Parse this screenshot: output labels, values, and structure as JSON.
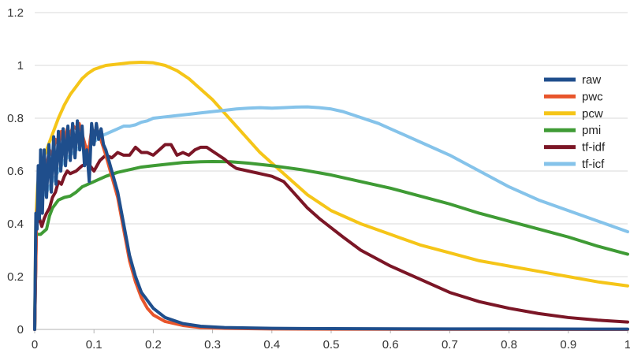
{
  "chart_data": {
    "type": "line",
    "title": "",
    "xlabel": "",
    "ylabel": "",
    "xlim": [
      0,
      1
    ],
    "ylim": [
      0,
      1.2
    ],
    "x_ticks": [
      "0",
      "0.1",
      "0.2",
      "0.3",
      "0.4",
      "0.5",
      "0.6",
      "0.7",
      "0.8",
      "0.9",
      "1"
    ],
    "y_ticks": [
      "0",
      "0.2",
      "0.4",
      "0.6",
      "0.8",
      "1",
      "1.2"
    ],
    "grid": "horizontal",
    "legend_position": "right",
    "series": [
      {
        "name": "raw",
        "color": "#1f4e8c",
        "points": [
          [
            0,
            0
          ],
          [
            0.002,
            0.44
          ],
          [
            0.004,
            0.38
          ],
          [
            0.006,
            0.62
          ],
          [
            0.008,
            0.42
          ],
          [
            0.01,
            0.68
          ],
          [
            0.013,
            0.44
          ],
          [
            0.016,
            0.68
          ],
          [
            0.02,
            0.5
          ],
          [
            0.024,
            0.7
          ],
          [
            0.028,
            0.52
          ],
          [
            0.032,
            0.73
          ],
          [
            0.036,
            0.55
          ],
          [
            0.04,
            0.75
          ],
          [
            0.044,
            0.6
          ],
          [
            0.048,
            0.76
          ],
          [
            0.052,
            0.62
          ],
          [
            0.056,
            0.77
          ],
          [
            0.06,
            0.64
          ],
          [
            0.064,
            0.78
          ],
          [
            0.068,
            0.65
          ],
          [
            0.072,
            0.79
          ],
          [
            0.076,
            0.68
          ],
          [
            0.08,
            0.77
          ],
          [
            0.084,
            0.62
          ],
          [
            0.088,
            0.68
          ],
          [
            0.092,
            0.56
          ],
          [
            0.096,
            0.78
          ],
          [
            0.1,
            0.7
          ],
          [
            0.104,
            0.78
          ],
          [
            0.108,
            0.72
          ],
          [
            0.112,
            0.76
          ],
          [
            0.116,
            0.7
          ],
          [
            0.12,
            0.68
          ],
          [
            0.13,
            0.6
          ],
          [
            0.14,
            0.52
          ],
          [
            0.15,
            0.4
          ],
          [
            0.16,
            0.28
          ],
          [
            0.17,
            0.2
          ],
          [
            0.18,
            0.14
          ],
          [
            0.2,
            0.08
          ],
          [
            0.22,
            0.045
          ],
          [
            0.25,
            0.022
          ],
          [
            0.28,
            0.012
          ],
          [
            0.32,
            0.007
          ],
          [
            0.4,
            0.004
          ],
          [
            0.5,
            0.003
          ],
          [
            0.7,
            0.002
          ],
          [
            1,
            0.001
          ]
        ]
      },
      {
        "name": "pwc",
        "color": "#e8552b",
        "points": [
          [
            0,
            0
          ],
          [
            0.003,
            0.42
          ],
          [
            0.006,
            0.5
          ],
          [
            0.01,
            0.6
          ],
          [
            0.015,
            0.64
          ],
          [
            0.02,
            0.62
          ],
          [
            0.025,
            0.68
          ],
          [
            0.03,
            0.66
          ],
          [
            0.035,
            0.72
          ],
          [
            0.04,
            0.7
          ],
          [
            0.045,
            0.75
          ],
          [
            0.05,
            0.72
          ],
          [
            0.055,
            0.76
          ],
          [
            0.06,
            0.74
          ],
          [
            0.065,
            0.77
          ],
          [
            0.07,
            0.76
          ],
          [
            0.075,
            0.78
          ],
          [
            0.08,
            0.74
          ],
          [
            0.085,
            0.7
          ],
          [
            0.09,
            0.66
          ],
          [
            0.095,
            0.74
          ],
          [
            0.1,
            0.75
          ],
          [
            0.105,
            0.76
          ],
          [
            0.11,
            0.73
          ],
          [
            0.12,
            0.66
          ],
          [
            0.13,
            0.58
          ],
          [
            0.14,
            0.5
          ],
          [
            0.15,
            0.38
          ],
          [
            0.16,
            0.26
          ],
          [
            0.17,
            0.18
          ],
          [
            0.18,
            0.12
          ],
          [
            0.19,
            0.08
          ],
          [
            0.2,
            0.055
          ],
          [
            0.22,
            0.03
          ],
          [
            0.25,
            0.015
          ],
          [
            0.28,
            0.007
          ],
          [
            0.32,
            0.004
          ],
          [
            0.4,
            0.002
          ],
          [
            0.5,
            0.001
          ],
          [
            1,
            0.0
          ]
        ]
      },
      {
        "name": "pcw",
        "color": "#f5c518",
        "points": [
          [
            0,
            0
          ],
          [
            0.002,
            0.42
          ],
          [
            0.005,
            0.55
          ],
          [
            0.01,
            0.62
          ],
          [
            0.02,
            0.68
          ],
          [
            0.03,
            0.74
          ],
          [
            0.04,
            0.8
          ],
          [
            0.05,
            0.85
          ],
          [
            0.06,
            0.89
          ],
          [
            0.07,
            0.92
          ],
          [
            0.08,
            0.95
          ],
          [
            0.09,
            0.97
          ],
          [
            0.1,
            0.985
          ],
          [
            0.12,
            1.0
          ],
          [
            0.14,
            1.005
          ],
          [
            0.16,
            1.01
          ],
          [
            0.18,
            1.012
          ],
          [
            0.2,
            1.01
          ],
          [
            0.22,
            1.0
          ],
          [
            0.24,
            0.98
          ],
          [
            0.26,
            0.95
          ],
          [
            0.28,
            0.91
          ],
          [
            0.3,
            0.87
          ],
          [
            0.32,
            0.82
          ],
          [
            0.34,
            0.77
          ],
          [
            0.36,
            0.72
          ],
          [
            0.38,
            0.67
          ],
          [
            0.4,
            0.63
          ],
          [
            0.42,
            0.59
          ],
          [
            0.44,
            0.55
          ],
          [
            0.46,
            0.51
          ],
          [
            0.48,
            0.48
          ],
          [
            0.5,
            0.45
          ],
          [
            0.55,
            0.4
          ],
          [
            0.6,
            0.36
          ],
          [
            0.65,
            0.32
          ],
          [
            0.7,
            0.29
          ],
          [
            0.75,
            0.26
          ],
          [
            0.8,
            0.24
          ],
          [
            0.85,
            0.22
          ],
          [
            0.9,
            0.2
          ],
          [
            0.95,
            0.18
          ],
          [
            1,
            0.165
          ]
        ]
      },
      {
        "name": "pmi",
        "color": "#3f9b35",
        "points": [
          [
            0,
            0
          ],
          [
            0.002,
            0.36
          ],
          [
            0.01,
            0.36
          ],
          [
            0.02,
            0.38
          ],
          [
            0.025,
            0.43
          ],
          [
            0.03,
            0.46
          ],
          [
            0.04,
            0.49
          ],
          [
            0.05,
            0.5
          ],
          [
            0.06,
            0.505
          ],
          [
            0.07,
            0.52
          ],
          [
            0.08,
            0.54
          ],
          [
            0.1,
            0.56
          ],
          [
            0.12,
            0.58
          ],
          [
            0.14,
            0.595
          ],
          [
            0.16,
            0.605
          ],
          [
            0.18,
            0.615
          ],
          [
            0.2,
            0.62
          ],
          [
            0.22,
            0.625
          ],
          [
            0.25,
            0.632
          ],
          [
            0.28,
            0.635
          ],
          [
            0.3,
            0.636
          ],
          [
            0.33,
            0.635
          ],
          [
            0.36,
            0.63
          ],
          [
            0.4,
            0.62
          ],
          [
            0.45,
            0.605
          ],
          [
            0.5,
            0.585
          ],
          [
            0.55,
            0.56
          ],
          [
            0.6,
            0.535
          ],
          [
            0.65,
            0.505
          ],
          [
            0.7,
            0.475
          ],
          [
            0.75,
            0.44
          ],
          [
            0.8,
            0.41
          ],
          [
            0.85,
            0.38
          ],
          [
            0.9,
            0.35
          ],
          [
            0.95,
            0.315
          ],
          [
            1,
            0.285
          ]
        ]
      },
      {
        "name": "tf-idf",
        "color": "#7b1626",
        "points": [
          [
            0,
            0
          ],
          [
            0.003,
            0.4
          ],
          [
            0.008,
            0.42
          ],
          [
            0.012,
            0.39
          ],
          [
            0.016,
            0.42
          ],
          [
            0.02,
            0.44
          ],
          [
            0.025,
            0.46
          ],
          [
            0.03,
            0.5
          ],
          [
            0.035,
            0.52
          ],
          [
            0.04,
            0.56
          ],
          [
            0.045,
            0.55
          ],
          [
            0.05,
            0.58
          ],
          [
            0.055,
            0.6
          ],
          [
            0.06,
            0.59
          ],
          [
            0.07,
            0.6
          ],
          [
            0.08,
            0.62
          ],
          [
            0.09,
            0.63
          ],
          [
            0.1,
            0.6
          ],
          [
            0.11,
            0.64
          ],
          [
            0.12,
            0.66
          ],
          [
            0.13,
            0.65
          ],
          [
            0.14,
            0.67
          ],
          [
            0.15,
            0.66
          ],
          [
            0.16,
            0.66
          ],
          [
            0.17,
            0.69
          ],
          [
            0.18,
            0.67
          ],
          [
            0.19,
            0.67
          ],
          [
            0.2,
            0.66
          ],
          [
            0.21,
            0.68
          ],
          [
            0.22,
            0.7
          ],
          [
            0.23,
            0.7
          ],
          [
            0.24,
            0.66
          ],
          [
            0.25,
            0.67
          ],
          [
            0.26,
            0.66
          ],
          [
            0.27,
            0.68
          ],
          [
            0.28,
            0.69
          ],
          [
            0.29,
            0.69
          ],
          [
            0.3,
            0.675
          ],
          [
            0.31,
            0.66
          ],
          [
            0.32,
            0.645
          ],
          [
            0.33,
            0.625
          ],
          [
            0.34,
            0.61
          ],
          [
            0.36,
            0.6
          ],
          [
            0.38,
            0.59
          ],
          [
            0.4,
            0.58
          ],
          [
            0.42,
            0.56
          ],
          [
            0.44,
            0.51
          ],
          [
            0.46,
            0.46
          ],
          [
            0.48,
            0.42
          ],
          [
            0.5,
            0.385
          ],
          [
            0.52,
            0.35
          ],
          [
            0.55,
            0.3
          ],
          [
            0.6,
            0.24
          ],
          [
            0.65,
            0.19
          ],
          [
            0.7,
            0.14
          ],
          [
            0.75,
            0.105
          ],
          [
            0.8,
            0.08
          ],
          [
            0.85,
            0.06
          ],
          [
            0.9,
            0.045
          ],
          [
            0.95,
            0.035
          ],
          [
            1,
            0.028
          ]
        ]
      },
      {
        "name": "tf-icf",
        "color": "#85c3ea",
        "points": [
          [
            0,
            0
          ],
          [
            0.003,
            0.42
          ],
          [
            0.008,
            0.46
          ],
          [
            0.012,
            0.5
          ],
          [
            0.02,
            0.52
          ],
          [
            0.03,
            0.56
          ],
          [
            0.04,
            0.6
          ],
          [
            0.05,
            0.64
          ],
          [
            0.06,
            0.66
          ],
          [
            0.07,
            0.68
          ],
          [
            0.08,
            0.7
          ],
          [
            0.09,
            0.69
          ],
          [
            0.1,
            0.71
          ],
          [
            0.11,
            0.73
          ],
          [
            0.12,
            0.74
          ],
          [
            0.13,
            0.75
          ],
          [
            0.14,
            0.76
          ],
          [
            0.15,
            0.77
          ],
          [
            0.16,
            0.77
          ],
          [
            0.17,
            0.775
          ],
          [
            0.18,
            0.785
          ],
          [
            0.19,
            0.79
          ],
          [
            0.2,
            0.8
          ],
          [
            0.22,
            0.805
          ],
          [
            0.24,
            0.81
          ],
          [
            0.26,
            0.815
          ],
          [
            0.28,
            0.82
          ],
          [
            0.3,
            0.825
          ],
          [
            0.32,
            0.83
          ],
          [
            0.34,
            0.835
          ],
          [
            0.36,
            0.838
          ],
          [
            0.38,
            0.84
          ],
          [
            0.4,
            0.838
          ],
          [
            0.42,
            0.84
          ],
          [
            0.44,
            0.842
          ],
          [
            0.46,
            0.843
          ],
          [
            0.48,
            0.84
          ],
          [
            0.5,
            0.835
          ],
          [
            0.52,
            0.825
          ],
          [
            0.54,
            0.81
          ],
          [
            0.56,
            0.795
          ],
          [
            0.58,
            0.78
          ],
          [
            0.6,
            0.76
          ],
          [
            0.63,
            0.73
          ],
          [
            0.66,
            0.7
          ],
          [
            0.7,
            0.66
          ],
          [
            0.75,
            0.6
          ],
          [
            0.8,
            0.54
          ],
          [
            0.85,
            0.49
          ],
          [
            0.9,
            0.45
          ],
          [
            0.95,
            0.41
          ],
          [
            1,
            0.37
          ]
        ]
      }
    ]
  }
}
